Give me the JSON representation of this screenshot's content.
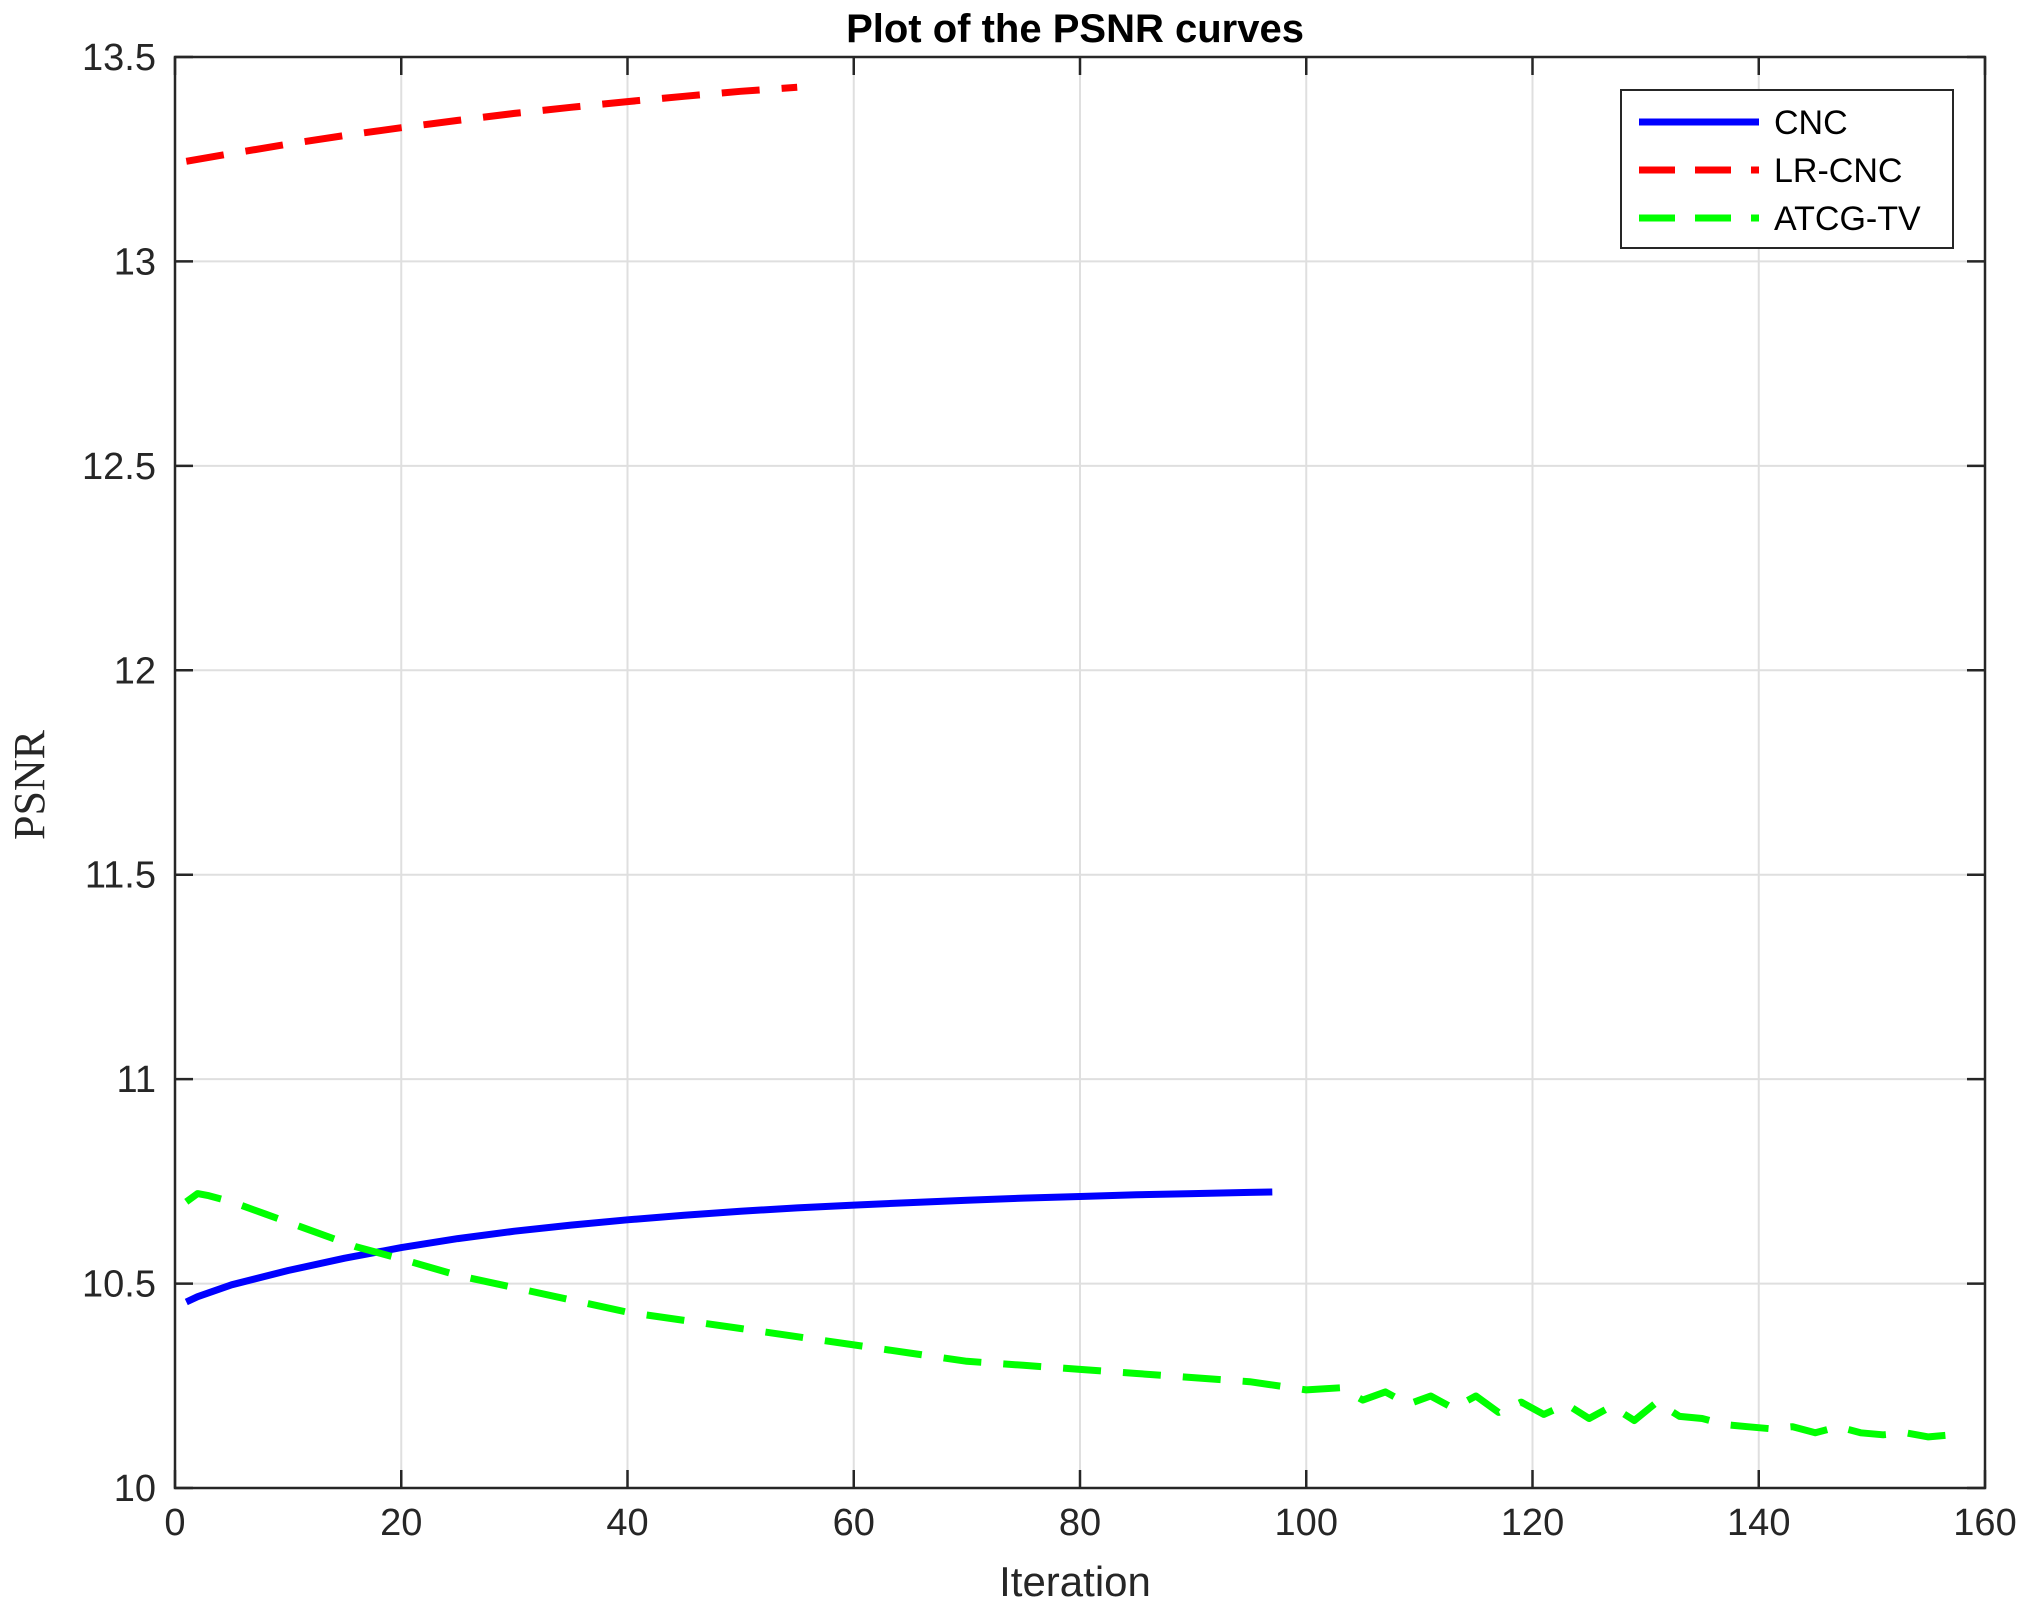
{
  "chart_data": {
    "type": "line",
    "title": "Plot of the PSNR curves",
    "xlabel": "Iteration",
    "ylabel": "PSNR",
    "xlim": [
      0,
      160
    ],
    "ylim": [
      10,
      13.5
    ],
    "xticks": [
      0,
      20,
      40,
      60,
      80,
      100,
      120,
      140,
      160
    ],
    "xtick_labels": [
      "0",
      "20",
      "40",
      "60",
      "80",
      "100",
      "120",
      "140",
      "160"
    ],
    "yticks": [
      10,
      10.5,
      11,
      11.5,
      12,
      12.5,
      13,
      13.5
    ],
    "ytick_labels": [
      "10",
      "10.5",
      "11",
      "11.5",
      "12",
      "12.5",
      "13",
      "13.5"
    ],
    "grid": true,
    "legend_position": "top-right",
    "series": [
      {
        "name": "CNC",
        "color": "#0000ff",
        "style": "solid",
        "x": [
          1,
          2,
          5,
          10,
          15,
          20,
          25,
          30,
          35,
          40,
          45,
          50,
          55,
          60,
          65,
          70,
          75,
          80,
          85,
          90,
          95,
          97
        ],
        "y": [
          10.455,
          10.468,
          10.497,
          10.532,
          10.562,
          10.588,
          10.61,
          10.628,
          10.643,
          10.656,
          10.667,
          10.677,
          10.685,
          10.692,
          10.698,
          10.704,
          10.709,
          10.713,
          10.717,
          10.72,
          10.723,
          10.724
        ]
      },
      {
        "name": "LR-CNC",
        "color": "#ff0000",
        "style": "dashed",
        "x": [
          1,
          5,
          10,
          15,
          20,
          25,
          30,
          35,
          40,
          45,
          50,
          55
        ],
        "y": [
          13.245,
          13.264,
          13.287,
          13.308,
          13.327,
          13.345,
          13.362,
          13.377,
          13.391,
          13.404,
          13.416,
          13.426
        ]
      },
      {
        "name": "ATCG-TV",
        "color": "#00ff00",
        "style": "dashed",
        "x": [
          1,
          2,
          3,
          5,
          8,
          12,
          16,
          20,
          25,
          30,
          35,
          40,
          45,
          50,
          55,
          60,
          65,
          70,
          75,
          80,
          85,
          90,
          95,
          100,
          103,
          105,
          107,
          109,
          111,
          113,
          115,
          117,
          119,
          121,
          123,
          125,
          127,
          129,
          131,
          133,
          135,
          137,
          139,
          141,
          143,
          145,
          147,
          149,
          151,
          153,
          155,
          157
        ],
        "y": [
          10.7,
          10.72,
          10.715,
          10.7,
          10.67,
          10.63,
          10.59,
          10.56,
          10.52,
          10.49,
          10.46,
          10.43,
          10.41,
          10.39,
          10.37,
          10.35,
          10.33,
          10.31,
          10.3,
          10.29,
          10.28,
          10.27,
          10.26,
          10.24,
          10.245,
          10.215,
          10.235,
          10.205,
          10.225,
          10.195,
          10.225,
          10.185,
          10.21,
          10.18,
          10.205,
          10.17,
          10.2,
          10.165,
          10.21,
          10.175,
          10.17,
          10.155,
          10.15,
          10.145,
          10.15,
          10.135,
          10.15,
          10.135,
          10.13,
          10.135,
          10.125,
          10.13
        ]
      }
    ]
  }
}
